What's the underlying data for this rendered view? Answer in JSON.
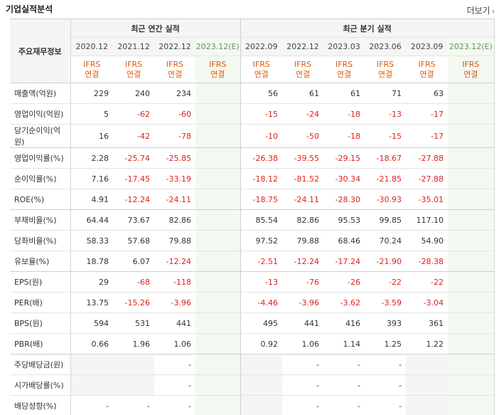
{
  "header": {
    "title": "기업실적분석",
    "more_label": "더보기"
  },
  "table": {
    "row_header_label": "주요재무정보",
    "group_annual": "최근 연간 실적",
    "group_quarter": "최근 분기 실적",
    "periods": [
      "2020.12",
      "2021.12",
      "2022.12",
      "2023.12(E)",
      "2022.09",
      "2022.12",
      "2023.03",
      "2023.06",
      "2023.09",
      "2023.12(E)"
    ],
    "standard_top": "IFRS",
    "standard_bottom": "연결",
    "rows": [
      {
        "label": "매출액(억원)",
        "values": [
          "229",
          "240",
          "234",
          "",
          "56",
          "61",
          "61",
          "71",
          "63",
          ""
        ]
      },
      {
        "label": "영업이익(억원)",
        "values": [
          "5",
          "-62",
          "-60",
          "",
          "-15",
          "-24",
          "-18",
          "-13",
          "-17",
          ""
        ]
      },
      {
        "label": "당기순이익(억원)",
        "values": [
          "16",
          "-42",
          "-78",
          "",
          "-10",
          "-50",
          "-18",
          "-15",
          "-17",
          ""
        ]
      },
      {
        "label": "영업이익률(%)",
        "values": [
          "2.28",
          "-25.74",
          "-25.85",
          "",
          "-26.38",
          "-39.55",
          "-29.15",
          "-18.67",
          "-27.88",
          ""
        ]
      },
      {
        "label": "순이익률(%)",
        "values": [
          "7.16",
          "-17.45",
          "-33.19",
          "",
          "-18.12",
          "-81.52",
          "-30.34",
          "-21.85",
          "-27.88",
          ""
        ]
      },
      {
        "label": "ROE(%)",
        "values": [
          "4.91",
          "-12.24",
          "-24.11",
          "",
          "-18.75",
          "-24.11",
          "-28.30",
          "-30.93",
          "-35.01",
          ""
        ]
      },
      {
        "label": "부채비율(%)",
        "values": [
          "64.44",
          "73.67",
          "82.86",
          "",
          "85.54",
          "82.86",
          "95.53",
          "99.85",
          "117.10",
          ""
        ]
      },
      {
        "label": "당좌비율(%)",
        "values": [
          "58.33",
          "57.68",
          "79.88",
          "",
          "97.52",
          "79.88",
          "68.46",
          "70.24",
          "54.90",
          ""
        ]
      },
      {
        "label": "유보율(%)",
        "values": [
          "18.78",
          "6.07",
          "-12.24",
          "",
          "-2.51",
          "-12.24",
          "-17.24",
          "-21.90",
          "-28.38",
          ""
        ]
      },
      {
        "label": "EPS(원)",
        "values": [
          "29",
          "-68",
          "-118",
          "",
          "-13",
          "-76",
          "-26",
          "-22",
          "-22",
          ""
        ]
      },
      {
        "label": "PER(배)",
        "values": [
          "13.75",
          "-15.26",
          "-3.96",
          "",
          "-4.46",
          "-3.96",
          "-3.62",
          "-3.59",
          "-3.04",
          ""
        ]
      },
      {
        "label": "BPS(원)",
        "values": [
          "594",
          "531",
          "441",
          "",
          "495",
          "441",
          "416",
          "393",
          "361",
          ""
        ]
      },
      {
        "label": "PBR(배)",
        "values": [
          "0.66",
          "1.96",
          "1.06",
          "",
          "0.92",
          "1.06",
          "1.14",
          "1.25",
          "1.22",
          ""
        ]
      },
      {
        "label": "주당배당금(원)",
        "values": [
          "",
          "",
          "-",
          "",
          "",
          "-",
          "-",
          "-",
          "",
          ""
        ]
      },
      {
        "label": "시가배당률(%)",
        "values": [
          "",
          "",
          "-",
          "",
          "",
          "-",
          "-",
          "-",
          "",
          ""
        ]
      },
      {
        "label": "배당성향(%)",
        "values": [
          "-",
          "-",
          "-",
          "",
          "",
          "-",
          "-",
          "-",
          "",
          ""
        ]
      }
    ]
  }
}
